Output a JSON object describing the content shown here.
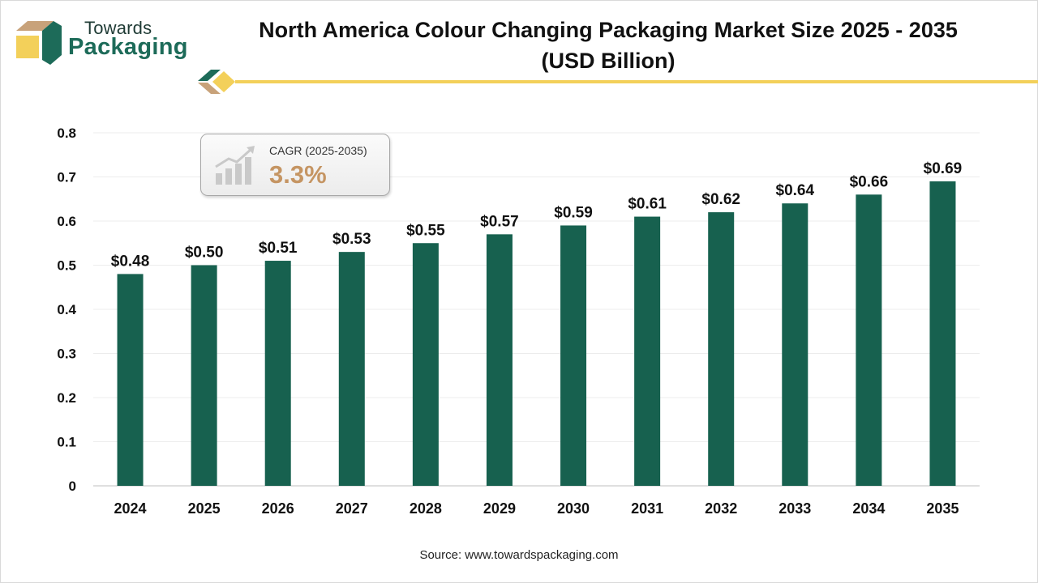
{
  "brand": {
    "line1": "Towards",
    "line2": "Packaging"
  },
  "title": "North America Colour Changing Packaging Market Size 2025 - 2035 (USD Billion)",
  "cagr": {
    "label": "CAGR (2025-2035)",
    "value": "3.3%"
  },
  "source": "Source: www.towardspackaging.com",
  "colors": {
    "bar": "#17614f",
    "accent_yellow": "#f3d05a",
    "brand_green": "#1d6b59",
    "cagr_value": "#c59563"
  },
  "chart_data": {
    "type": "bar",
    "title": "North America Colour Changing Packaging Market Size 2025 - 2035 (USD Billion)",
    "categories": [
      "2024",
      "2025",
      "2026",
      "2027",
      "2028",
      "2029",
      "2030",
      "2031",
      "2032",
      "2033",
      "2034",
      "2035"
    ],
    "values": [
      0.48,
      0.5,
      0.51,
      0.53,
      0.55,
      0.57,
      0.59,
      0.61,
      0.62,
      0.64,
      0.66,
      0.69
    ],
    "data_labels": [
      "$0.48",
      "$0.50",
      "$0.51",
      "$0.53",
      "$0.55",
      "$0.57",
      "$0.59",
      "$0.61",
      "$0.62",
      "$0.64",
      "$0.66",
      "$0.69"
    ],
    "ylim": [
      0,
      0.8
    ],
    "yticks": [
      "0",
      "0.1",
      "0.2",
      "0.3",
      "0.4",
      "0.5",
      "0.6",
      "0.7",
      "0.8"
    ],
    "xlabel": "",
    "ylabel": "",
    "grid": true,
    "legend": "none"
  }
}
